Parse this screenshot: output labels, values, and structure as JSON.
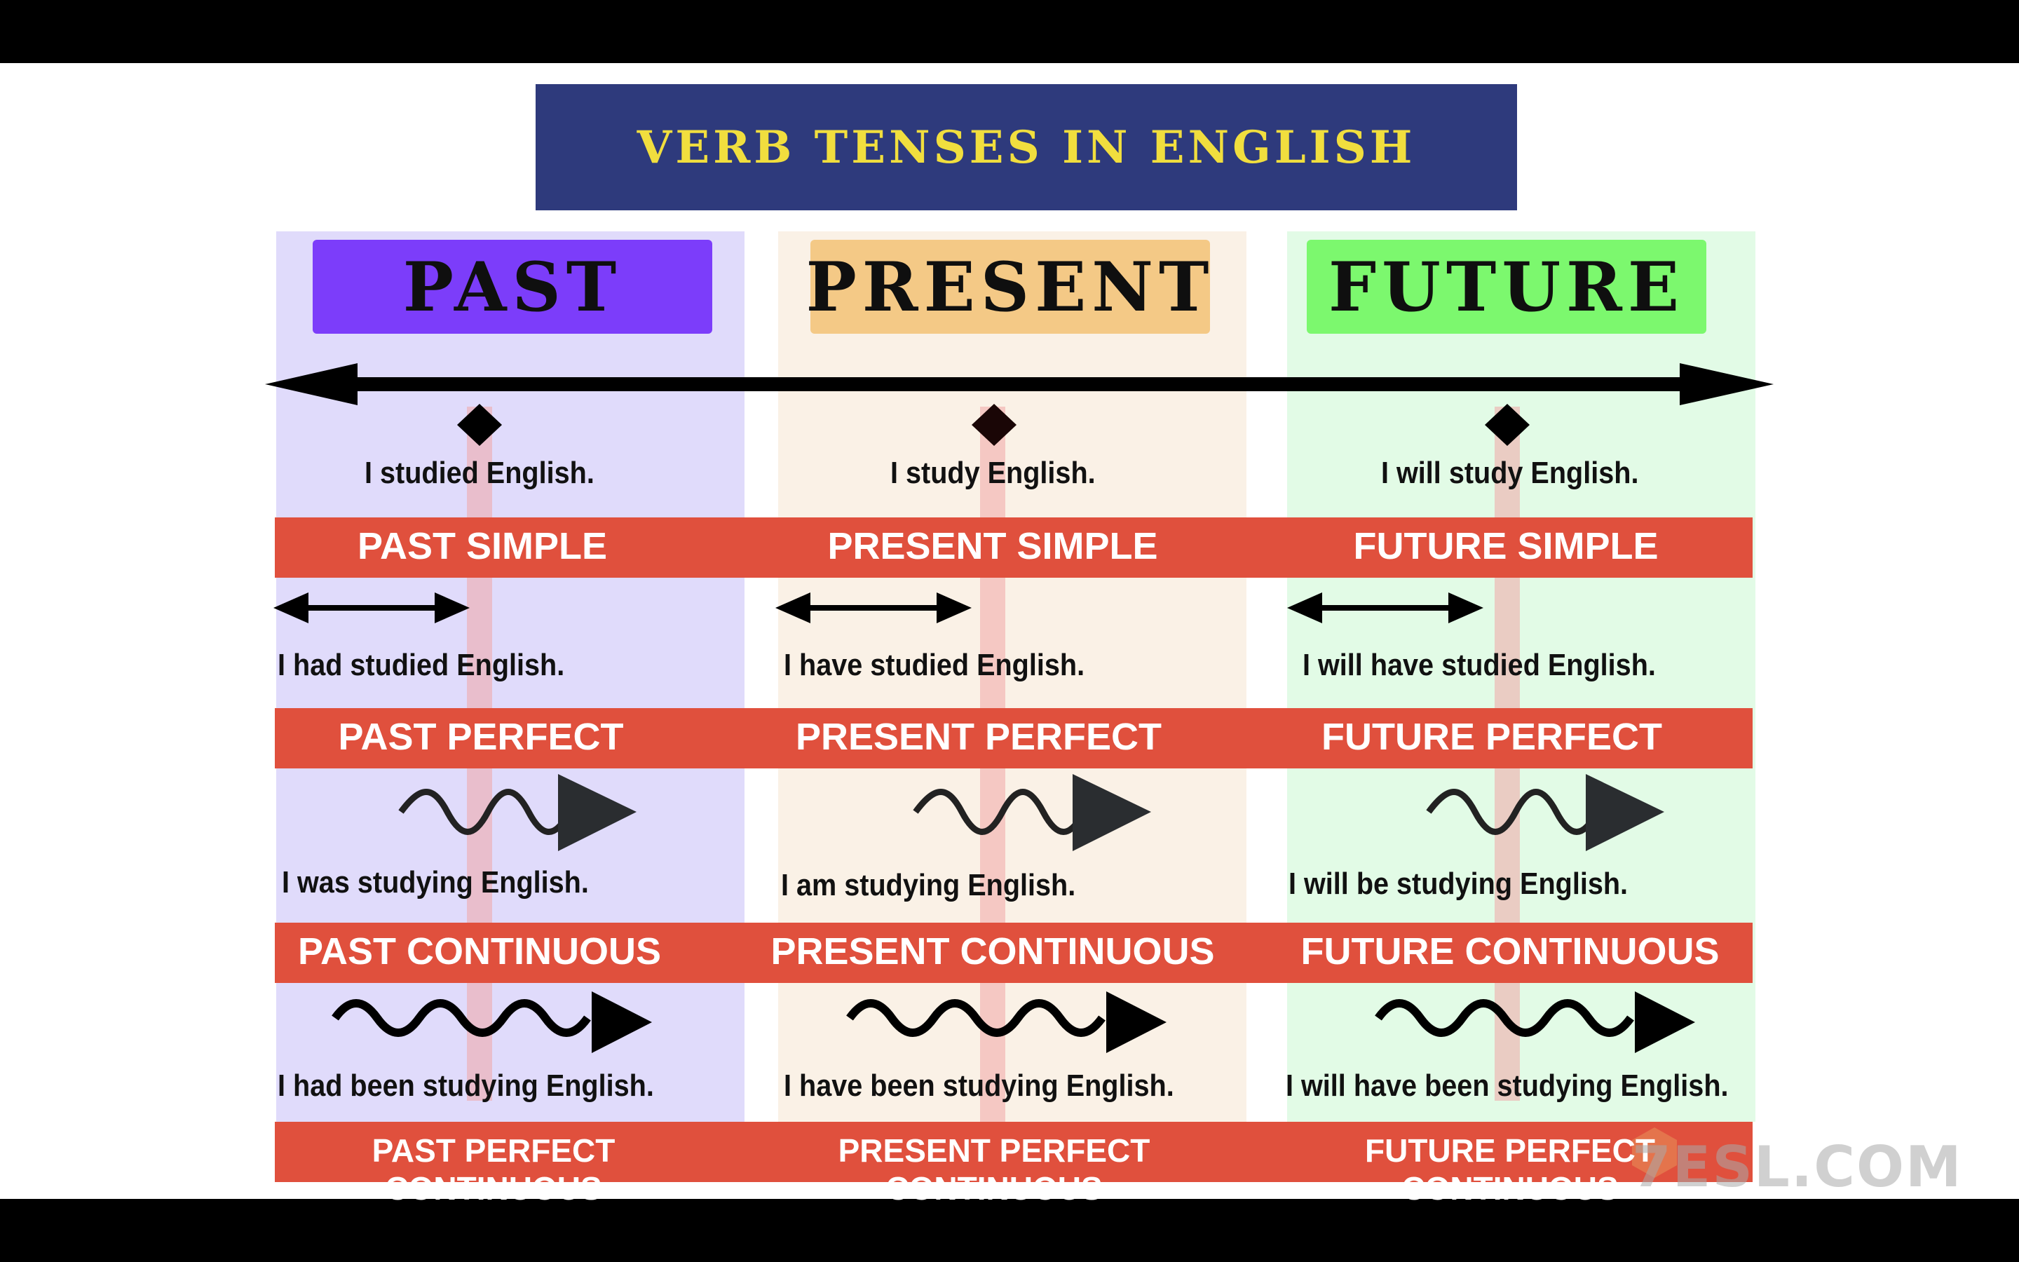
{
  "title": "VERB TENSES IN ENGLISH",
  "columns": [
    {
      "name": "PAST",
      "color": "#7c3dfa"
    },
    {
      "name": "PRESENT",
      "color": "#f4c986"
    },
    {
      "name": "FUTURE",
      "color": "#7cf86e"
    }
  ],
  "rows": [
    {
      "examples": [
        "I studied English.",
        "I study English.",
        "I will study English."
      ],
      "labels": [
        "PAST SIMPLE",
        "PRESENT SIMPLE",
        "FUTURE SIMPLE"
      ]
    },
    {
      "examples": [
        "I had studied English.",
        "I have studied English.",
        "I will have studied English."
      ],
      "labels": [
        "PAST PERFECT",
        "PRESENT PERFECT",
        "FUTURE PERFECT"
      ]
    },
    {
      "examples": [
        "I was studying English.",
        "I am studying English.",
        "I will be studying English."
      ],
      "labels": [
        "PAST CONTINUOUS",
        "PRESENT CONTINUOUS",
        "FUTURE CONTINUOUS"
      ]
    },
    {
      "examples": [
        "I had been studying English.",
        "I have been studying English.",
        "I will have been studying English."
      ],
      "labels": [
        "PAST PERFECT CONTINUOUS",
        "PRESENT PERFECT CONTINUOUS",
        "FUTURE PERFECT CONTINUOUS"
      ]
    }
  ],
  "watermark": "7ESL.COM",
  "colors": {
    "title_bg": "#2e3a7c",
    "title_text": "#f1de3e",
    "band": "#e0503d"
  }
}
